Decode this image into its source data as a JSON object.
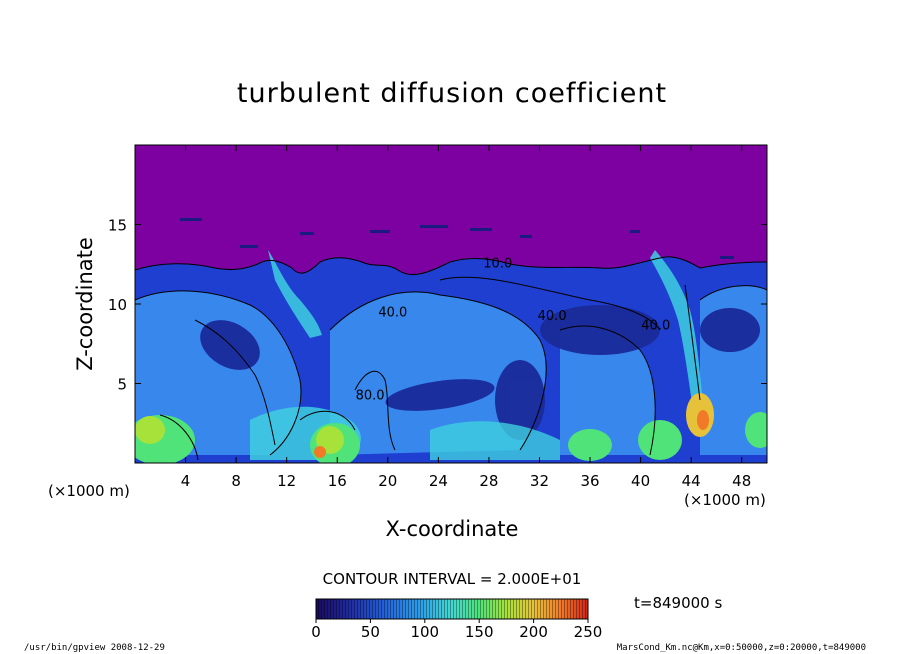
{
  "chart_data": {
    "type": "heatmap",
    "title": "turbulent diffusion coefficient",
    "xlabel": "X-coordinate",
    "ylabel": "Z-coordinate",
    "x_unit": "(×1000 m)",
    "y_unit": "(×1000 m)",
    "xlim": [
      0,
      50
    ],
    "ylim": [
      0,
      20
    ],
    "x_ticks": [
      4,
      8,
      12,
      16,
      20,
      24,
      28,
      32,
      36,
      40,
      44,
      48
    ],
    "y_ticks": [
      5,
      10,
      15
    ],
    "contour_interval": "CONTOUR INTERVAL = 2.000E+01",
    "contour_labels": [
      {
        "text": "10.0",
        "x": 28.7,
        "z": 12.3
      },
      {
        "text": "40.0",
        "x": 33.0,
        "z": 9.0
      },
      {
        "text": "40.0",
        "x": 41.2,
        "z": 8.4
      },
      {
        "text": "80.0",
        "x": 18.6,
        "z": 4.0
      },
      {
        "text": "40.0",
        "x": 20.4,
        "z": 9.2
      }
    ],
    "colorbar": {
      "min": 0,
      "max": 250,
      "ticks": [
        0,
        50,
        100,
        150,
        200,
        250
      ],
      "colors": [
        "#1a0a5a",
        "#1f2aa0",
        "#2460d8",
        "#2d9de8",
        "#45d8d0",
        "#4fe37a",
        "#a6e23a",
        "#e6c23a",
        "#f07a28",
        "#d02818"
      ]
    },
    "time_label": "t=849000 s",
    "background_color": "#7d00a0",
    "grid": false
  },
  "footer": {
    "left": "/usr/bin/gpview   2008-12-29",
    "right": "MarsCond_Km.nc@Km,x=0:50000,z=0:20000,t=849000"
  }
}
